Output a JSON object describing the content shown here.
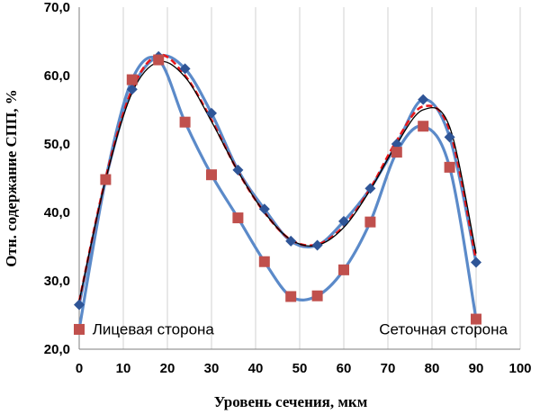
{
  "chart_data": {
    "type": "line",
    "title": "",
    "xlabel": "Уровень сечения, мкм",
    "ylabel": "Отн. содержание СПП, %",
    "xlim": [
      0,
      100
    ],
    "ylim": [
      20,
      70
    ],
    "x_ticks": [
      "0",
      "10",
      "20",
      "30",
      "40",
      "50",
      "60",
      "70",
      "80",
      "90",
      "100"
    ],
    "y_ticks": [
      "20,0",
      "30,0",
      "40,0",
      "50,0",
      "60,0",
      "70,0"
    ],
    "grid": "vertical",
    "legend": "none",
    "annotations": [
      {
        "text": "Лицевая сторона",
        "x": 3,
        "y": 22.2
      },
      {
        "text": "Сеточная сторона",
        "x": 68,
        "y": 22.2
      }
    ],
    "series": [
      {
        "marker": "diamond",
        "color": "#2F5597",
        "line_color": "#5B8AC9",
        "x": [
          0,
          6,
          12,
          18,
          24,
          30,
          36,
          42,
          48,
          54,
          60,
          66,
          72,
          78,
          84,
          90
        ],
        "y": [
          26.5,
          44.8,
          58.0,
          62.8,
          61.0,
          54.5,
          46.2,
          40.5,
          35.8,
          35.2,
          38.7,
          43.5,
          50.0,
          56.5,
          51.0,
          32.7
        ]
      },
      {
        "marker": "square",
        "color": "#C0504D",
        "line_color": "#5B8AC9",
        "x": [
          0,
          6,
          12,
          18,
          24,
          30,
          36,
          42,
          48,
          54,
          60,
          66,
          72,
          78,
          84,
          90
        ],
        "y": [
          22.9,
          44.8,
          59.4,
          62.3,
          53.2,
          45.5,
          39.2,
          32.8,
          27.7,
          27.8,
          31.6,
          38.6,
          48.8,
          52.6,
          46.6,
          24.4
        ]
      },
      {
        "style": "dashed",
        "color": "#E8171B",
        "x": [
          0,
          6,
          12,
          18,
          24,
          30,
          36,
          42,
          48,
          54,
          60,
          66,
          72,
          78,
          84,
          90
        ],
        "y": [
          27.0,
          45.0,
          58.0,
          63.0,
          60.0,
          53.5,
          46.0,
          40.0,
          36.0,
          35.3,
          38.0,
          43.5,
          50.5,
          55.5,
          52.0,
          33.0
        ]
      },
      {
        "style": "solid-thin",
        "color": "#000000",
        "x": [
          0,
          6,
          12,
          18,
          24,
          30,
          36,
          42,
          48,
          54,
          60,
          66,
          72,
          78,
          84,
          90
        ],
        "y": [
          27.0,
          44.8,
          57.5,
          62.0,
          59.8,
          53.3,
          46.0,
          40.0,
          36.0,
          35.2,
          37.8,
          43.3,
          50.0,
          55.0,
          52.5,
          34.0
        ]
      }
    ]
  }
}
